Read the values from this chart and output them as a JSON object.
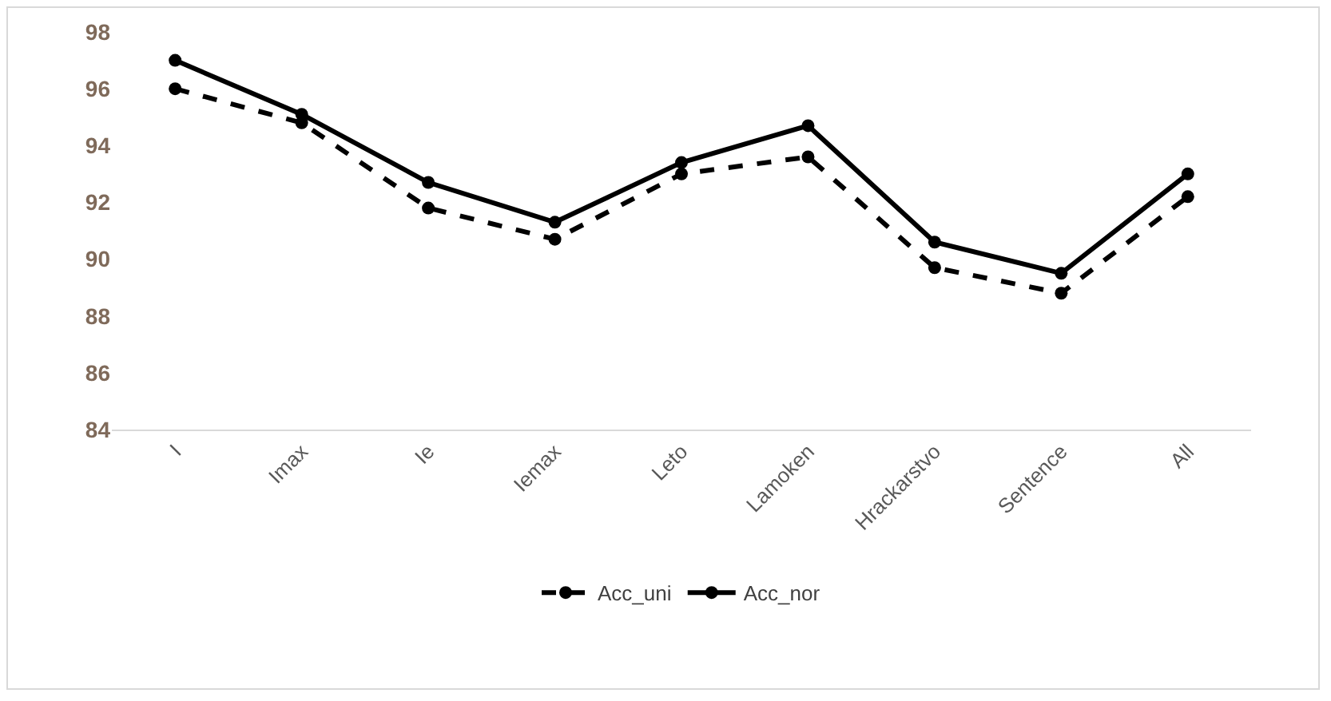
{
  "chart_data": {
    "type": "line",
    "categories": [
      "I",
      "Imax",
      "Ie",
      "Iemax",
      "Leto",
      "Lamoken",
      "Hrackarstvo",
      "Sentence",
      "All"
    ],
    "series": [
      {
        "name": "Acc_uni",
        "color": "#000000",
        "line_style": "dashed",
        "values": [
          96.0,
          94.8,
          91.8,
          90.7,
          93.0,
          93.6,
          89.7,
          88.8,
          92.2
        ]
      },
      {
        "name": "Acc_nor",
        "color": "#000000",
        "line_style": "solid",
        "values": [
          97.0,
          95.1,
          92.7,
          91.3,
          93.4,
          94.7,
          90.6,
          89.5,
          93.0
        ]
      }
    ],
    "ylim": [
      84,
      98
    ],
    "yticks": [
      84,
      86,
      88,
      90,
      92,
      94,
      96,
      98
    ],
    "grid": false,
    "legend": "bottom",
    "marker": "circle"
  }
}
